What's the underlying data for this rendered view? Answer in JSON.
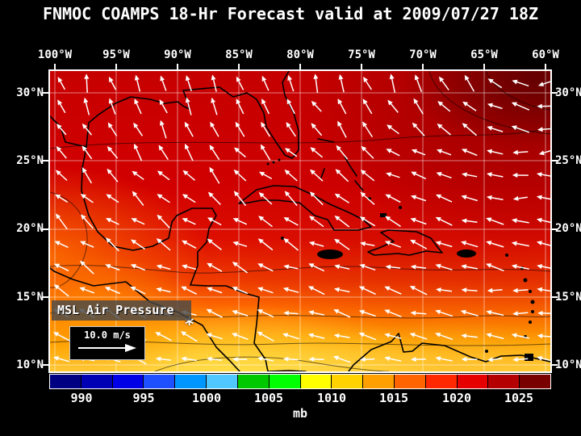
{
  "title": "FNMOC COAMPS 18-Hr Forecast valid at 2009/07/27 18Z",
  "axes": {
    "lon_labels": [
      "100°W",
      "95°W",
      "90°W",
      "85°W",
      "80°W",
      "75°W",
      "70°W",
      "65°W",
      "60°W"
    ],
    "lat_labels": [
      "30°N",
      "25°N",
      "20°N",
      "15°N",
      "10°N"
    ]
  },
  "legend": {
    "field_label": "MSL Air Pressure",
    "wind_scale_label": "10.0 m/s"
  },
  "colorbar": {
    "unit": "mb",
    "tick_labels": [
      "990",
      "995",
      "1000",
      "1005",
      "1010",
      "1015",
      "1020",
      "1025"
    ],
    "range_mb": [
      987.5,
      1027.5
    ],
    "cell_step_mb": 2.5,
    "colors": [
      "#000082",
      "#0000b4",
      "#0000e6",
      "#1e50ff",
      "#0096ff",
      "#50c8ff",
      "#00c800",
      "#00ff00",
      "#ffff00",
      "#ffd200",
      "#ffa000",
      "#ff6400",
      "#ff2800",
      "#e60000",
      "#b40000",
      "#780000"
    ]
  },
  "wind_field": {
    "arrow_color": "#ffffff",
    "marker": "*"
  },
  "map_colors": {
    "high_pressure_dark_red": "#6e0000",
    "red": "#d20000",
    "orange": "#ff7a00",
    "yellow": "#ffd84d",
    "coastline": "#000000",
    "grid": "#ffffff"
  },
  "chart_data": {
    "type": "heatmap",
    "title": "FNMOC COAMPS 18-Hr Forecast valid at 2009/07/27 18Z",
    "field": "MSL Air Pressure",
    "unit": "mb",
    "colorbar_ticks": [
      990,
      995,
      1000,
      1005,
      1010,
      1015,
      1020,
      1025
    ],
    "colorbar_range": [
      987.5,
      1027.5
    ],
    "lon_range_deg_w": [
      100,
      60
    ],
    "lat_range_deg_n": [
      10,
      30
    ],
    "wind_reference_ms": 10.0
  }
}
